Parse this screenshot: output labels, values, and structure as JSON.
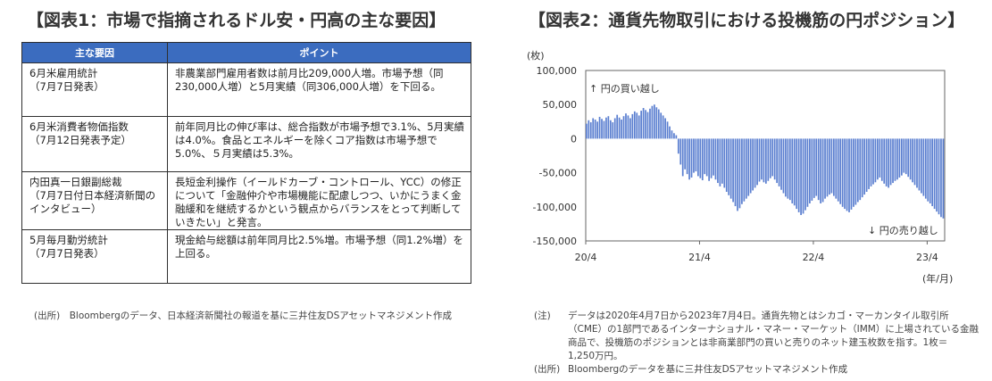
{
  "left_panel": {
    "title": "【図表1：市場で指摘されるドル安・円高の主な要因】",
    "table": {
      "headers": [
        "主な要因",
        "ポイント"
      ],
      "rows": [
        {
          "factor": "6月米雇用統計\n（7月7日発表）",
          "point": "非農業部門雇用者数は前月比209,000人増。市場予想（同230,000人増）と5月実績（同306,000人増）を下回る。"
        },
        {
          "factor": "6月米消費者物価指数\n（7月12日発表予定）",
          "point": "前年同月比の伸び率は、総合指数が市場予想で3.1%、5月実績は4.0%。食品とエネルギーを除くコア指数は市場予想で5.0%、５月実績は5.3%。"
        },
        {
          "factor": "内田真一日銀副総裁\n（7月7日付日本経済新聞の\nインタビュー）",
          "point": "長短金利操作（イールドカーブ・コントロール、YCC）の修正について「金融仲介や市場機能に配慮しつつ、いかにうまく金融緩和を継続するかという観点からバランスをとって判断していきたい」と発言。"
        },
        {
          "factor": "5月毎月勤労統計\n（7月7日発表）",
          "point": "現金給与総額は前年同月比2.5%増。市場予想（同1.2%増）を上回る。"
        }
      ]
    },
    "source": "(出所)　Bloombergのデータ、日本経済新聞社の報道を基に三井住友DSアセットマネジメント作成"
  },
  "right_panel": {
    "title": "【図表2：通貨先物取引における投機筋の円ポジション】",
    "notes": [
      {
        "label": "(注)",
        "text": "データは2020年4月7日から2023年7月4日。通貨先物とはシカゴ・マーカンタイル取引所\n（CME）の1部門であるインターナショナル・マネー・マーケット（IMM）に上場されている金融\n商品で、投機筋のポジションとは非商業部門の買いと売りのネット建玉枚数を指す。1枚＝\n1,250万円。"
      },
      {
        "label": "(出所)",
        "text": "Bloombergのデータを基に三井住友DSアセットマネジメント作成"
      }
    ]
  },
  "chart_data": {
    "type": "bar",
    "title": "",
    "y_unit_label": "(枚)",
    "x_unit_label": "(年/月)",
    "ylim": [
      -150000,
      100000
    ],
    "y_ticks": [
      100000,
      50000,
      0,
      -50000,
      -100000,
      -150000
    ],
    "y_tick_labels": [
      "100,000",
      "50,000",
      "0",
      "-50,000",
      "-100,000",
      "-150,000"
    ],
    "x_tick_labels": [
      "20/4",
      "21/4",
      "22/4",
      "23/4"
    ],
    "x_tick_positions": [
      0,
      52,
      104,
      156
    ],
    "annotations": {
      "buy": "↑ 円の買い越し",
      "sell": "↓ 円の売り越し"
    },
    "bar_color": "#5b7fd0",
    "values": [
      22000,
      27000,
      24000,
      30000,
      28000,
      25000,
      32000,
      29000,
      26000,
      31000,
      33000,
      27000,
      24000,
      30000,
      35000,
      31000,
      28000,
      33000,
      37000,
      34000,
      30000,
      36000,
      40000,
      38000,
      34000,
      41000,
      45000,
      42000,
      39000,
      44000,
      48000,
      50000,
      46000,
      43000,
      38000,
      34000,
      30000,
      25000,
      18000,
      12000,
      8000,
      5000,
      -22000,
      -38000,
      -55000,
      -45000,
      -52000,
      -60000,
      -57000,
      -50000,
      -48000,
      -55000,
      -58000,
      -61000,
      -52000,
      -55000,
      -62000,
      -58000,
      -54000,
      -60000,
      -65000,
      -70000,
      -66000,
      -72000,
      -78000,
      -83000,
      -88000,
      -93000,
      -99000,
      -106000,
      -102000,
      -96000,
      -92000,
      -88000,
      -84000,
      -80000,
      -76000,
      -72000,
      -68000,
      -63000,
      -60000,
      -64000,
      -66000,
      -62000,
      -58000,
      -55000,
      -60000,
      -65000,
      -70000,
      -75000,
      -80000,
      -85000,
      -88000,
      -90000,
      -95000,
      -98000,
      -103000,
      -108000,
      -112000,
      -110000,
      -105000,
      -100000,
      -95000,
      -91000,
      -87000,
      -84000,
      -90000,
      -95000,
      -93000,
      -88000,
      -85000,
      -82000,
      -80000,
      -84000,
      -88000,
      -92000,
      -96000,
      -100000,
      -103000,
      -106000,
      -108000,
      -104000,
      -100000,
      -97000,
      -93000,
      -90000,
      -86000,
      -82000,
      -78000,
      -74000,
      -70000,
      -67000,
      -64000,
      -60000,
      -57000,
      -62000,
      -66000,
      -70000,
      -72000,
      -68000,
      -65000,
      -62000,
      -60000,
      -57000,
      -54000,
      -50000,
      -52000,
      -56000,
      -60000,
      -64000,
      -68000,
      -72000,
      -76000,
      -80000,
      -84000,
      -88000,
      -92000,
      -95000,
      -99000,
      -103000,
      -107000,
      -111000,
      -115000,
      -117000
    ]
  }
}
